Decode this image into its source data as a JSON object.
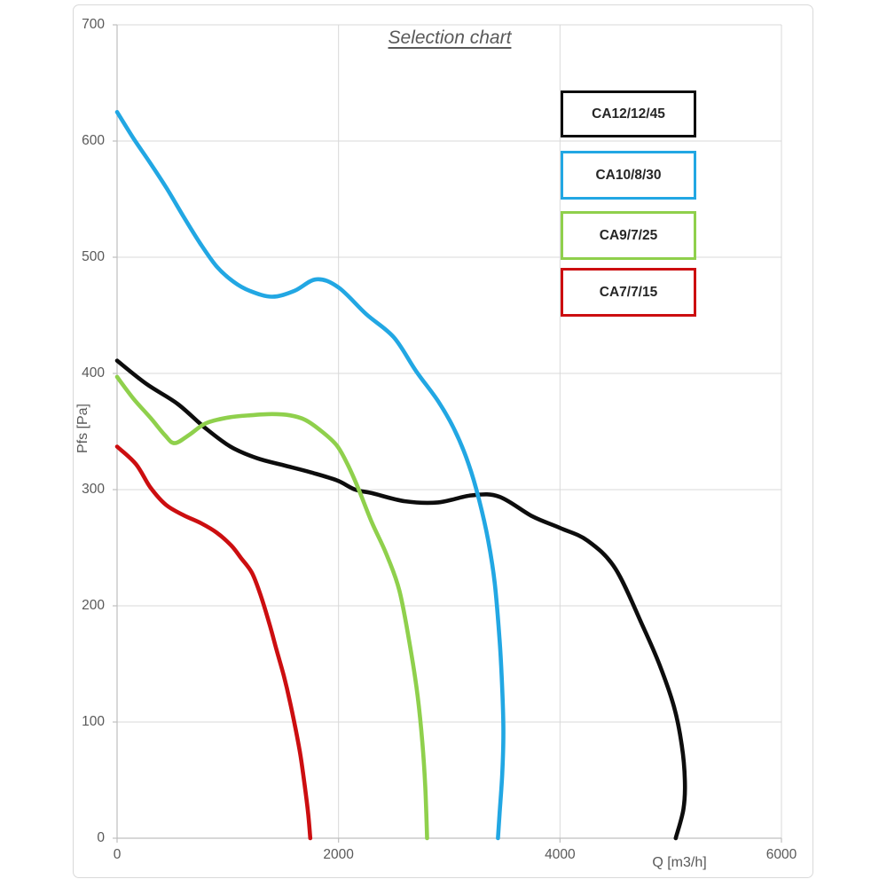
{
  "chart_data": {
    "type": "line",
    "title": "Selection chart",
    "xlabel": "Q [m3/h]",
    "ylabel": "Pfs [Pa]",
    "xlim": [
      0,
      6000
    ],
    "ylim": [
      0,
      700
    ],
    "x_ticks": [
      0,
      2000,
      4000,
      6000
    ],
    "y_ticks": [
      0,
      100,
      200,
      300,
      400,
      500,
      600,
      700
    ],
    "grid": true,
    "legend_position": "top-right",
    "series": [
      {
        "name": "CA12/12/45",
        "color": "#0d0d0d",
        "points": [
          [
            0,
            411
          ],
          [
            264,
            391
          ],
          [
            544,
            374
          ],
          [
            784,
            354
          ],
          [
            1024,
            337
          ],
          [
            1264,
            327
          ],
          [
            1504,
            321
          ],
          [
            1744,
            315
          ],
          [
            1984,
            308
          ],
          [
            2150,
            300
          ],
          [
            2300,
            297
          ],
          [
            2600,
            290
          ],
          [
            2900,
            289
          ],
          [
            3200,
            295
          ],
          [
            3450,
            294
          ],
          [
            3750,
            277
          ],
          [
            4000,
            267
          ],
          [
            4250,
            256
          ],
          [
            4500,
            232
          ],
          [
            4750,
            182
          ],
          [
            4900,
            149
          ],
          [
            5030,
            113
          ],
          [
            5100,
            80
          ],
          [
            5128,
            50
          ],
          [
            5115,
            25
          ],
          [
            5045,
            0
          ]
        ]
      },
      {
        "name": "CA10/8/30",
        "color": "#22a7e3",
        "points": [
          [
            0,
            625
          ],
          [
            150,
            602
          ],
          [
            300,
            581
          ],
          [
            450,
            559
          ],
          [
            600,
            535
          ],
          [
            750,
            512
          ],
          [
            900,
            492
          ],
          [
            1050,
            479
          ],
          [
            1200,
            471
          ],
          [
            1400,
            466
          ],
          [
            1600,
            471
          ],
          [
            1800,
            481
          ],
          [
            2000,
            474
          ],
          [
            2250,
            451
          ],
          [
            2500,
            431
          ],
          [
            2700,
            402
          ],
          [
            2900,
            376
          ],
          [
            3050,
            351
          ],
          [
            3175,
            322
          ],
          [
            3270,
            291
          ],
          [
            3350,
            257
          ],
          [
            3410,
            220
          ],
          [
            3455,
            170
          ],
          [
            3480,
            125
          ],
          [
            3489,
            90
          ],
          [
            3478,
            55
          ],
          [
            3455,
            22
          ],
          [
            3440,
            0
          ]
        ]
      },
      {
        "name": "CA9/7/25",
        "color": "#8fd04c",
        "points": [
          [
            0,
            397
          ],
          [
            150,
            378
          ],
          [
            300,
            362
          ],
          [
            430,
            347
          ],
          [
            520,
            340
          ],
          [
            650,
            347
          ],
          [
            800,
            357
          ],
          [
            1000,
            362
          ],
          [
            1200,
            364
          ],
          [
            1400,
            365
          ],
          [
            1560,
            364
          ],
          [
            1700,
            360
          ],
          [
            1850,
            350
          ],
          [
            1984,
            338
          ],
          [
            2080,
            322
          ],
          [
            2170,
            303
          ],
          [
            2300,
            272
          ],
          [
            2430,
            245
          ],
          [
            2550,
            213
          ],
          [
            2650,
            163
          ],
          [
            2715,
            122
          ],
          [
            2757,
            82
          ],
          [
            2783,
            45
          ],
          [
            2800,
            0
          ]
        ]
      },
      {
        "name": "CA7/7/15",
        "color": "#cc0e10",
        "points": [
          [
            0,
            337
          ],
          [
            170,
            322
          ],
          [
            300,
            302
          ],
          [
            440,
            287
          ],
          [
            600,
            278
          ],
          [
            760,
            271
          ],
          [
            900,
            263
          ],
          [
            1030,
            252
          ],
          [
            1120,
            241
          ],
          [
            1220,
            228
          ],
          [
            1300,
            208
          ],
          [
            1380,
            183
          ],
          [
            1440,
            162
          ],
          [
            1505,
            140
          ],
          [
            1560,
            118
          ],
          [
            1610,
            95
          ],
          [
            1655,
            72
          ],
          [
            1695,
            45
          ],
          [
            1725,
            22
          ],
          [
            1745,
            0
          ]
        ]
      }
    ]
  }
}
